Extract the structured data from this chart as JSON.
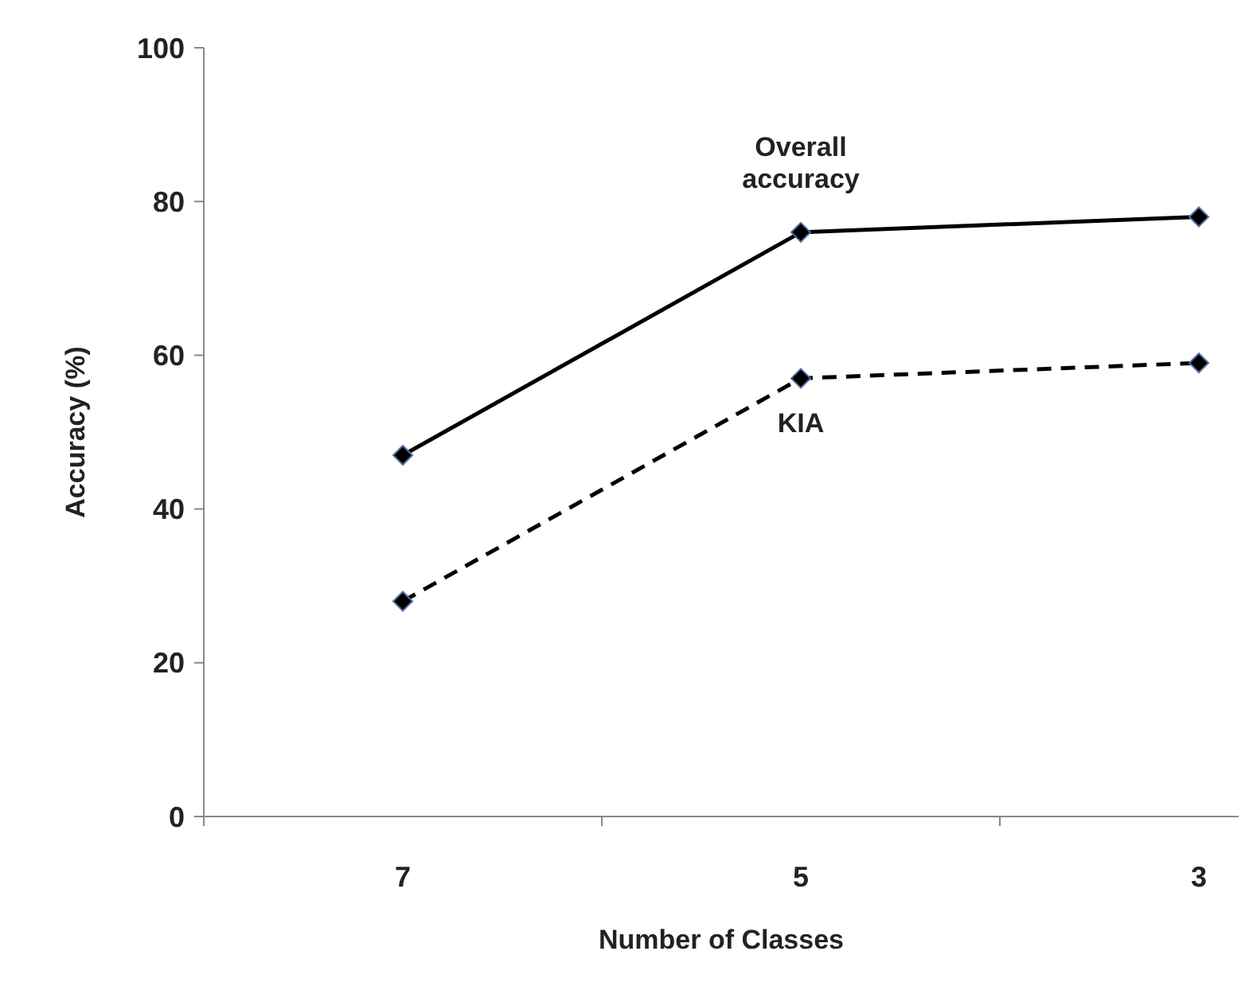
{
  "chart_data": {
    "type": "line",
    "xlabel": "Number of Classes",
    "ylabel": "Accuracy (%)",
    "categories": [
      "7",
      "5",
      "3"
    ],
    "ylim": [
      0,
      100
    ],
    "yticks": [
      0,
      20,
      40,
      60,
      80,
      100
    ],
    "grid": false,
    "marker": "diamond",
    "series": [
      {
        "name": "Overall accuracy",
        "color": "#000000",
        "values": [
          47,
          76,
          78
        ],
        "line_style": "solid"
      },
      {
        "name": "KIA",
        "color": "#000000",
        "values": [
          28,
          57,
          59
        ],
        "line_style": "dashed"
      }
    ]
  }
}
